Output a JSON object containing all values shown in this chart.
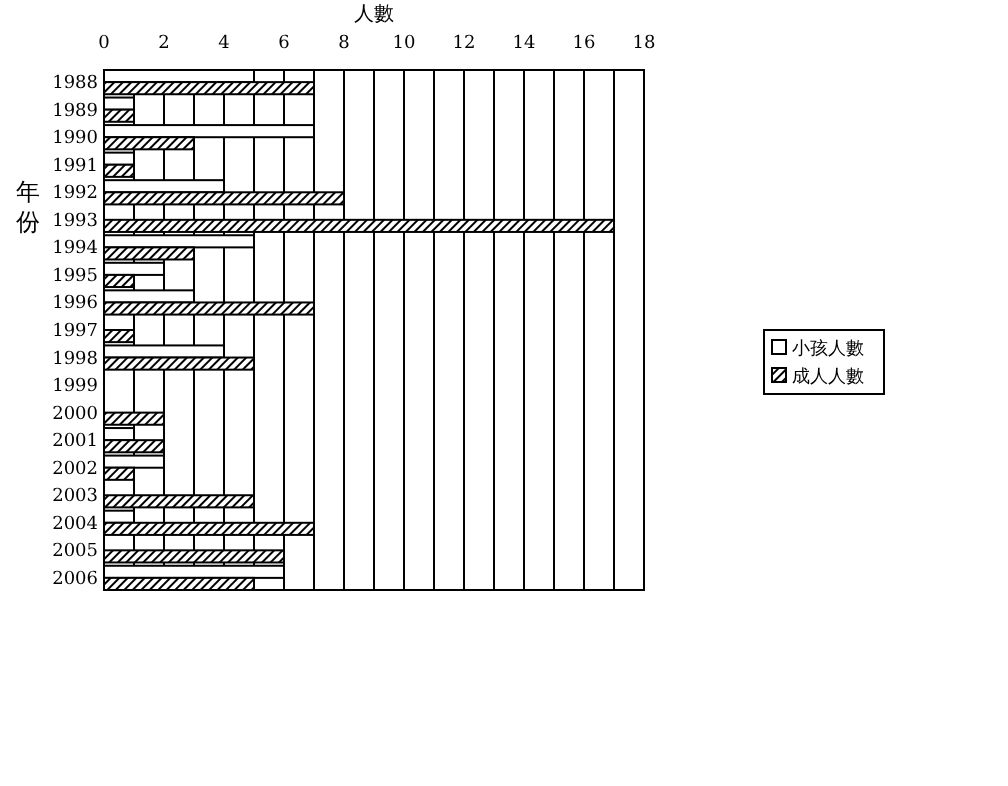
{
  "chart_data": {
    "type": "bar",
    "orientation": "horizontal",
    "xlabel": "人數",
    "ylabel": "年份",
    "categories": [
      "1988",
      "1989",
      "1990",
      "1991",
      "1992",
      "1993",
      "1994",
      "1995",
      "1996",
      "1997",
      "1998",
      "1999",
      "2000",
      "2001",
      "2002",
      "2003",
      "2004",
      "2005",
      "2006"
    ],
    "series": [
      {
        "name": "小孩人數",
        "color": "#ffffff",
        "values": [
          5,
          1,
          7,
          1,
          4,
          0,
          5,
          2,
          3,
          0,
          4,
          0,
          0,
          1,
          2,
          0,
          1,
          0,
          6
        ]
      },
      {
        "name": "成人人數",
        "color": "#000000",
        "values": [
          7,
          1,
          3,
          1,
          8,
          17,
          3,
          1,
          7,
          1,
          5,
          0,
          2,
          2,
          1,
          5,
          7,
          6,
          5
        ]
      }
    ],
    "xlim": [
      0,
      18
    ],
    "xticks": [
      0,
      {
        "value": 1,
        "label": null
      },
      2,
      {
        "value": 3,
        "label": null
      },
      4,
      {
        "value": 5,
        "label": null
      },
      6,
      {
        "value": 7,
        "label": null
      },
      8,
      {
        "value": 9,
        "label": null
      },
      10,
      {
        "value": 11,
        "label": null
      },
      12,
      {
        "value": 13,
        "label": null
      },
      14,
      {
        "value": 15,
        "label": null
      },
      16,
      {
        "value": 17,
        "label": null
      },
      18
    ],
    "grid": "x",
    "legend": "right"
  }
}
